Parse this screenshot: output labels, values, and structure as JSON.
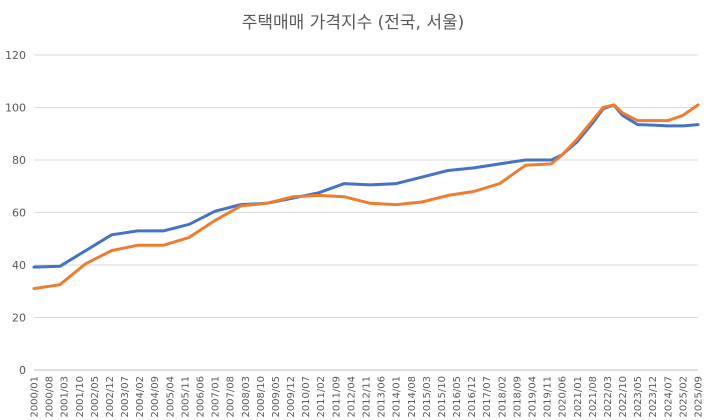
{
  "chart_data": {
    "type": "line",
    "title": "주택매매 가격지수 (전국, 서울)",
    "xlabel": "",
    "ylabel": "",
    "ylim": [
      0,
      120
    ],
    "yticks": [
      0,
      20,
      40,
      60,
      80,
      100,
      120
    ],
    "grid": true,
    "legend": "none",
    "x_tick_labels": [
      "2000/01",
      "2000/08",
      "2001/03",
      "2001/10",
      "2002/05",
      "2002/12",
      "2003/07",
      "2004/02",
      "2004/09",
      "2005/04",
      "2005/11",
      "2006/06",
      "2007/01",
      "2007/08",
      "2008/03",
      "2008/10",
      "2009/05",
      "2009/12",
      "2010/07",
      "2011/02",
      "2011/09",
      "2012/04",
      "2012/11",
      "2013/06",
      "2014/01",
      "2014/08",
      "2015/03",
      "2015/10",
      "2016/05",
      "2016/12",
      "2017/07",
      "2018/02",
      "2018/09",
      "2019/04",
      "2019/11",
      "2020/06",
      "2021/01",
      "2021/08",
      "2022/03",
      "2022/10",
      "2023/05",
      "2023/12",
      "2024/07",
      "2025/02",
      "2025/09"
    ],
    "x_dates": [
      "2000/01",
      "2001/01",
      "2002/01",
      "2003/01",
      "2004/01",
      "2005/01",
      "2006/01",
      "2007/01",
      "2008/01",
      "2009/01",
      "2010/01",
      "2011/01",
      "2012/01",
      "2013/01",
      "2014/01",
      "2015/01",
      "2016/01",
      "2017/01",
      "2018/01",
      "2019/01",
      "2020/01",
      "2020/06",
      "2021/01",
      "2021/08",
      "2022/01",
      "2022/06",
      "2022/10",
      "2023/05",
      "2023/12",
      "2024/07",
      "2025/02",
      "2025/09"
    ],
    "series": [
      {
        "color": "#4472C4",
        "values": [
          39.2,
          39.5,
          45.5,
          51.5,
          53.0,
          53.0,
          55.5,
          60.5,
          63.0,
          63.5,
          65.5,
          67.5,
          71.0,
          70.5,
          71.0,
          73.5,
          76.0,
          77.0,
          78.5,
          80.0,
          80.0,
          82.0,
          87.0,
          94.0,
          99.5,
          101.0,
          97.0,
          93.5,
          93.3,
          93.0,
          93.0,
          93.5
        ]
      },
      {
        "color": "#ED7D31",
        "values": [
          31.0,
          32.5,
          40.5,
          45.5,
          47.5,
          47.5,
          50.5,
          57.0,
          62.5,
          63.5,
          66.0,
          66.5,
          66.0,
          63.5,
          63.0,
          64.0,
          66.5,
          68.0,
          71.0,
          78.0,
          78.5,
          82.0,
          88.0,
          95.0,
          100.0,
          101.0,
          98.0,
          95.0,
          95.0,
          95.0,
          97.0,
          101.0
        ]
      }
    ]
  }
}
